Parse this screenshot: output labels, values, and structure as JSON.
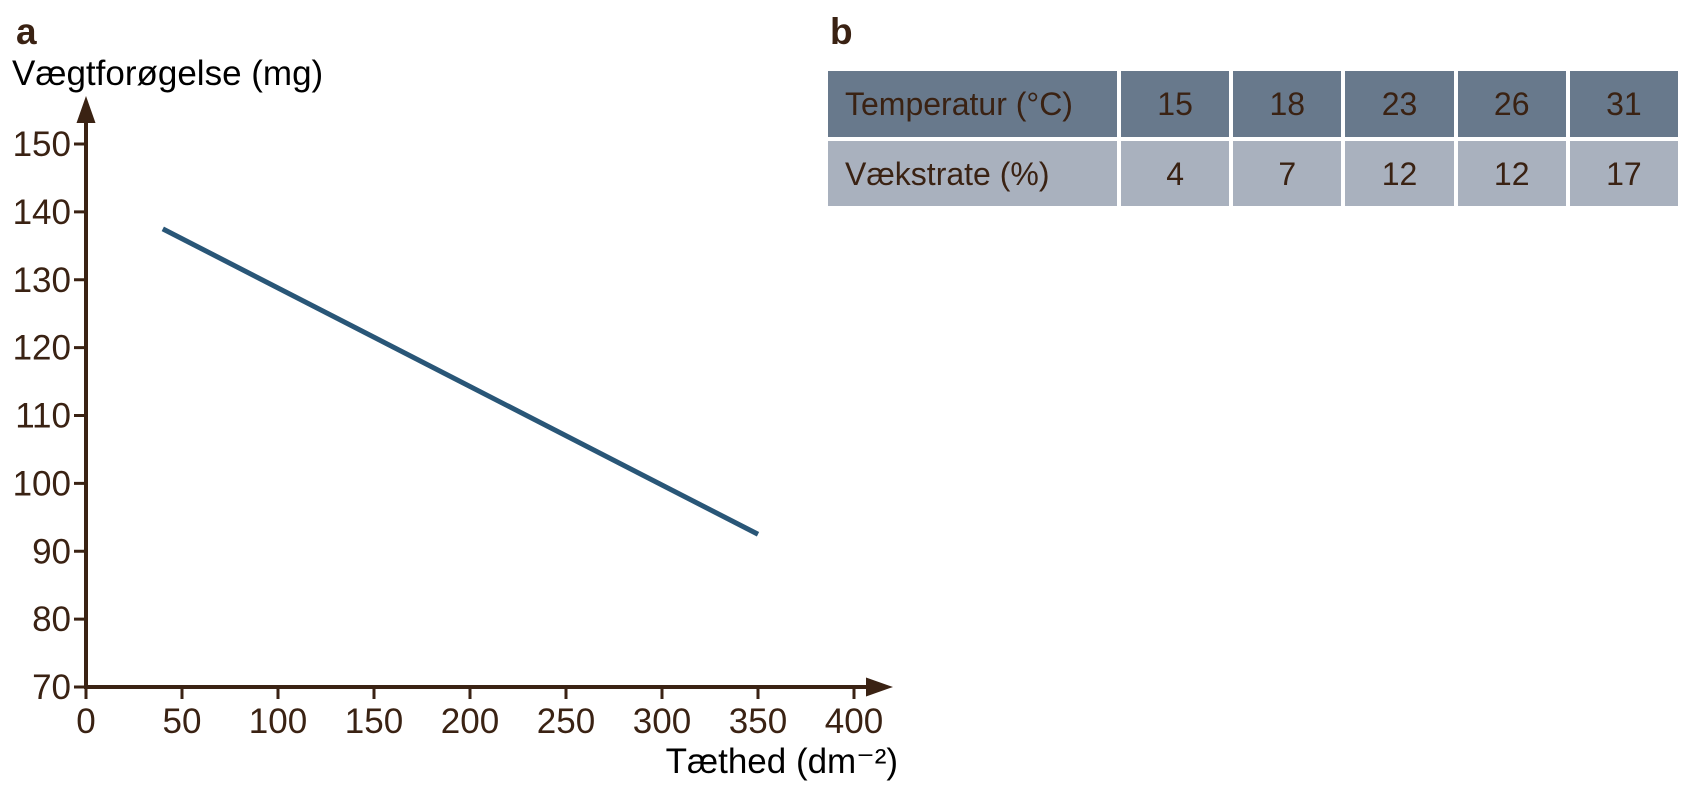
{
  "panels": {
    "a_label": "a",
    "b_label": "b"
  },
  "colors": {
    "ink": "#3a2213",
    "line": "#295677",
    "table_header_bg": "#68798c",
    "table_row_bg": "#a9b1be",
    "table_gap": "#ffffff",
    "page_bg": "#ffffff"
  },
  "chart_data": [
    {
      "type": "line",
      "panel": "a",
      "title": "",
      "ylabel": "Vægtforøgelse (mg)",
      "xlabel": "Tæthed (dm⁻²)",
      "xlim": [
        0,
        400
      ],
      "ylim": [
        70,
        150
      ],
      "x_ticks": [
        0,
        50,
        100,
        150,
        200,
        250,
        300,
        350,
        400
      ],
      "y_ticks": [
        70,
        80,
        90,
        100,
        110,
        120,
        130,
        140,
        150
      ],
      "grid": false,
      "legend": false,
      "series": [
        {
          "name": "vaegtforoegelse-line",
          "points": [
            [
              40,
              137.5
            ],
            [
              350,
              92.5
            ]
          ]
        }
      ]
    },
    {
      "type": "table",
      "panel": "b",
      "rows": [
        {
          "label": "Temperatur (°C)",
          "values": [
            15,
            18,
            23,
            26,
            31
          ]
        },
        {
          "label": "Vækstrate (%)",
          "values": [
            4,
            7,
            12,
            12,
            17
          ]
        }
      ]
    }
  ]
}
